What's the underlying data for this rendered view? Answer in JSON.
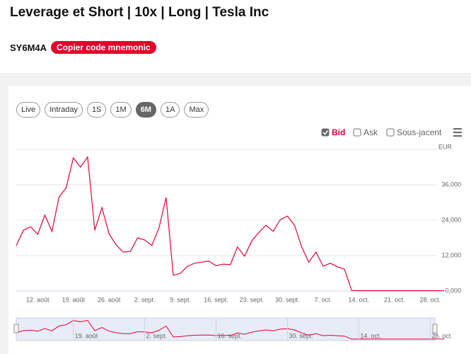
{
  "header": {
    "title": "Leverage et Short | 10x | Long | Tesla Inc",
    "code": "SY6M4A",
    "copy_button": "Copier code mnemonic"
  },
  "range_buttons": [
    {
      "label": "Live",
      "active": false
    },
    {
      "label": "Intraday",
      "active": false
    },
    {
      "label": "1S",
      "active": false
    },
    {
      "label": "1M",
      "active": false
    },
    {
      "label": "6M",
      "active": true
    },
    {
      "label": "1A",
      "active": false
    },
    {
      "label": "Max",
      "active": false
    }
  ],
  "chart_data": {
    "type": "line",
    "categories": [
      null,
      null,
      null,
      "12. août",
      null,
      null,
      null,
      null,
      "19. août",
      null,
      null,
      null,
      null,
      "26. août",
      null,
      null,
      null,
      null,
      "2. sept.",
      null,
      null,
      null,
      null,
      "9. sept.",
      null,
      null,
      null,
      null,
      "16. sept.",
      null,
      null,
      null,
      null,
      "23. sept.",
      null,
      null,
      null,
      null,
      "30. sept.",
      null,
      null,
      null,
      null,
      "7. oct.",
      null,
      null,
      null,
      null,
      "14. oct.",
      null,
      null,
      null,
      null,
      "21. oct.",
      null,
      null,
      null,
      null,
      "28. oct.",
      null,
      null
    ],
    "series": [
      {
        "name": "Bid",
        "checked": true,
        "color": "#e4003a",
        "values": [
          15.4,
          20.6,
          21.8,
          19.2,
          25.7,
          20.2,
          31.9,
          35.0,
          45.1,
          42.0,
          45.4,
          20.6,
          28.3,
          19.4,
          15.6,
          13.2,
          13.4,
          18.0,
          17.3,
          15.4,
          21.4,
          31.7,
          5.3,
          6.0,
          8.4,
          9.4,
          9.8,
          10.1,
          8.6,
          9.1,
          8.9,
          14.9,
          11.8,
          17.0,
          19.9,
          22.3,
          20.2,
          24.2,
          25.4,
          22.3,
          14.9,
          9.8,
          13.2,
          8.4,
          9.4,
          8.2,
          7.4,
          0.2,
          0.1,
          0.1,
          0.1,
          0.1,
          0.1,
          0.1,
          0.1,
          0.1,
          0.1,
          0.1,
          0.1,
          0.1,
          0.1
        ]
      }
    ],
    "hidden_series": [
      {
        "name": "Ask",
        "checked": false
      },
      {
        "name": "Sous-jacent",
        "checked": false
      }
    ],
    "y_unit": "EUR",
    "ylim": [
      0,
      48
    ],
    "yticks": [
      {
        "value": 0,
        "label": "0,000"
      },
      {
        "value": 12,
        "label": "12,000"
      },
      {
        "value": 24,
        "label": "24,000"
      },
      {
        "value": 36,
        "label": "36,000"
      },
      48
    ],
    "grid": true,
    "navigator": true
  }
}
